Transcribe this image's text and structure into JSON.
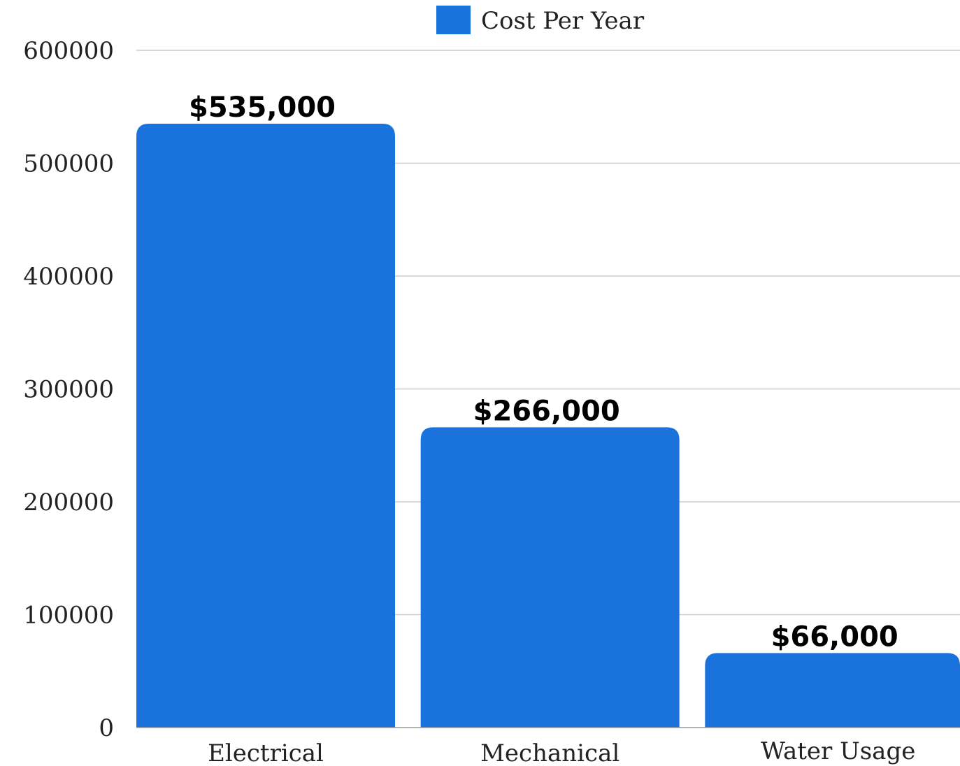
{
  "chart_data": {
    "type": "bar",
    "categories": [
      "Electrical",
      "Mechanical",
      "Water Usage"
    ],
    "series": [
      {
        "name": "Cost Per Year",
        "values": [
          535000,
          266000,
          66000
        ],
        "data_labels": [
          "$535,000",
          "$266,000",
          "$66,000"
        ],
        "color": "#1a73dc"
      }
    ],
    "y_ticks": [
      "0",
      "100000",
      "200000",
      "300000",
      "400000",
      "500000",
      "600000"
    ],
    "ylim": [
      0,
      600000
    ],
    "grid": true,
    "legend_position": "top-center"
  }
}
